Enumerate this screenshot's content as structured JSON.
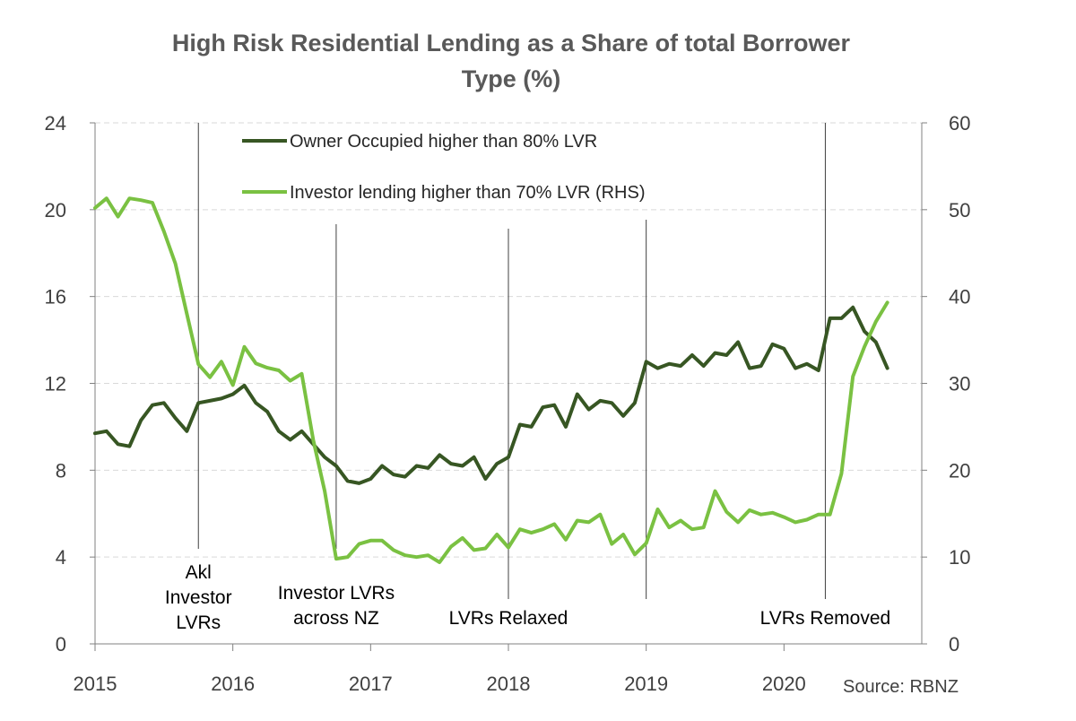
{
  "chart_data": {
    "type": "line",
    "title": "High Risk Residential Lending as a Share of total Borrower Type (%)",
    "title_lines": [
      "High Risk Residential Lending as a Share of total Borrower",
      "Type (%)"
    ],
    "x_start": 2015.0,
    "x_step_months": 1,
    "x_ticks": [
      "2015",
      "2016",
      "2017",
      "2018",
      "2019",
      "2020"
    ],
    "xlim": [
      2015.0,
      2021.0
    ],
    "y_left": {
      "range": [
        0,
        24
      ],
      "ticks": [
        "0",
        "4",
        "8",
        "12",
        "16",
        "20",
        "24"
      ]
    },
    "y_right": {
      "range": [
        0,
        60
      ],
      "ticks": [
        "0",
        "10",
        "20",
        "30",
        "40",
        "50",
        "60"
      ]
    },
    "grid": "horizontal dashed",
    "legend_position": "top-center",
    "series": [
      {
        "name": "Owner Occupied higher than 80% LVR",
        "color": "#375623",
        "axis": "left",
        "values": [
          9.7,
          9.8,
          9.2,
          9.1,
          10.3,
          11.0,
          11.1,
          10.4,
          9.8,
          11.1,
          11.2,
          11.3,
          11.5,
          11.9,
          11.1,
          10.7,
          9.8,
          9.4,
          9.8,
          9.2,
          8.6,
          8.2,
          7.5,
          7.4,
          7.6,
          8.2,
          7.8,
          7.7,
          8.2,
          8.1,
          8.7,
          8.3,
          8.2,
          8.6,
          7.6,
          8.3,
          8.6,
          10.1,
          10.0,
          10.9,
          11.0,
          10.0,
          11.5,
          10.8,
          11.2,
          11.1,
          10.5,
          11.1,
          13.0,
          12.7,
          12.9,
          12.8,
          13.3,
          12.8,
          13.4,
          13.3,
          13.9,
          12.7,
          12.8,
          13.8,
          13.6,
          12.7,
          12.9,
          12.6,
          15.0,
          15.0,
          15.5,
          14.4,
          13.9,
          12.7
        ]
      },
      {
        "name": "Investor lending higher than 70% LVR (RHS)",
        "color": "#7ac142",
        "axis": "right",
        "values": [
          50.2,
          51.3,
          49.2,
          51.3,
          51.1,
          50.8,
          47.5,
          43.8,
          38.0,
          32.2,
          30.7,
          32.5,
          29.8,
          34.2,
          32.3,
          31.8,
          31.5,
          30.3,
          31.1,
          23.5,
          17.6,
          9.8,
          10.0,
          11.5,
          11.9,
          11.9,
          10.8,
          10.2,
          10.0,
          10.2,
          9.4,
          11.2,
          12.2,
          10.8,
          11.0,
          12.6,
          11.1,
          13.2,
          12.8,
          13.2,
          13.8,
          12.0,
          14.2,
          14.0,
          14.9,
          11.5,
          12.6,
          10.3,
          11.6,
          15.5,
          13.4,
          14.2,
          13.2,
          13.4,
          17.6,
          15.2,
          14.0,
          15.4,
          14.9,
          15.1,
          14.6,
          14.0,
          14.3,
          14.9,
          14.9,
          19.6,
          30.8,
          34.2,
          37.1,
          39.3
        ]
      }
    ],
    "events": [
      {
        "x": 2015.75,
        "label": [
          "Akl",
          "Investor",
          "LVRs"
        ]
      },
      {
        "x": 2016.75,
        "label": [
          "Investor LVRs",
          "across NZ"
        ]
      },
      {
        "x": 2018.0,
        "label": [
          "LVRs Relaxed"
        ]
      },
      {
        "x": 2019.0,
        "label": []
      },
      {
        "x": 2020.3,
        "label": [
          "LVRs Removed"
        ]
      }
    ],
    "source": "Source: RBNZ"
  }
}
